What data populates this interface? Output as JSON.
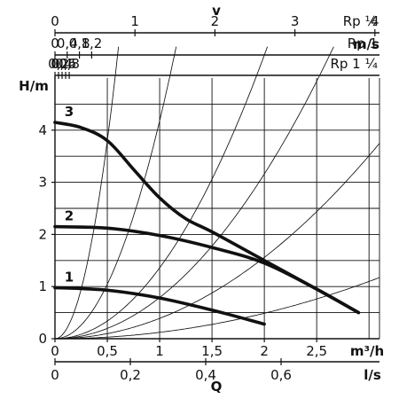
{
  "chart_data": {
    "type": "line",
    "ylabel": "H/m",
    "xlabel": "m³/h",
    "xlim": [
      0,
      3.1
    ],
    "ylim": [
      0,
      5
    ],
    "x_ticks": [
      "0",
      "0,5",
      "1",
      "1,5",
      "2",
      "2,5"
    ],
    "y_ticks": [
      "0",
      "1",
      "2",
      "3",
      "4"
    ],
    "grid": true,
    "series": [
      {
        "name": "1",
        "x": [
          0,
          0.5,
          1.0,
          1.5,
          2.0
        ],
        "y": [
          0.98,
          0.93,
          0.78,
          0.55,
          0.28
        ]
      },
      {
        "name": "2",
        "x": [
          0,
          0.5,
          1.0,
          1.5,
          2.0,
          2.5,
          2.9
        ],
        "y": [
          2.15,
          2.12,
          1.98,
          1.75,
          1.45,
          0.95,
          0.5
        ]
      },
      {
        "name": "3",
        "x": [
          0,
          0.25,
          0.5,
          0.75,
          1.0,
          1.25,
          1.5,
          2.0,
          2.5,
          2.9
        ],
        "y": [
          4.15,
          4.05,
          3.8,
          3.25,
          2.7,
          2.3,
          2.05,
          1.5,
          0.95,
          0.5
        ]
      }
    ],
    "system_curves": [
      {
        "k": 15.2
      },
      {
        "k": 4.18
      },
      {
        "k": 1.36
      },
      {
        "k": 0.79
      },
      {
        "k": 0.39
      },
      {
        "k": 0.122
      }
    ],
    "secondary_axes": {
      "bottom": {
        "label": "l/s",
        "title": "Q",
        "ticks": [
          "0",
          "0,2",
          "0,4",
          "0,6"
        ],
        "values": [
          0,
          0.2,
          0.4,
          0.6
        ]
      },
      "top_title": "v",
      "top_unit": "m/s",
      "top": [
        {
          "pipe": "Rp ½",
          "ticks": [
            "0",
            "1",
            "2",
            "3",
            "4"
          ],
          "values": [
            0,
            1,
            2,
            3,
            4
          ],
          "scale": 0.764
        },
        {
          "pipe": "Rp 1",
          "ticks": [
            "0",
            "0,4",
            "0,8",
            "1,2"
          ],
          "values": [
            0,
            0.4,
            0.8,
            1.2
          ],
          "scale": 0.292
        },
        {
          "pipe": "Rp 1 ¼",
          "ticks": [
            "0",
            "0,2",
            "0,4",
            "0,6",
            "0,8"
          ],
          "values": [
            0,
            0.2,
            0.4,
            0.6,
            0.8
          ],
          "scale": 0.17
        }
      ]
    }
  }
}
